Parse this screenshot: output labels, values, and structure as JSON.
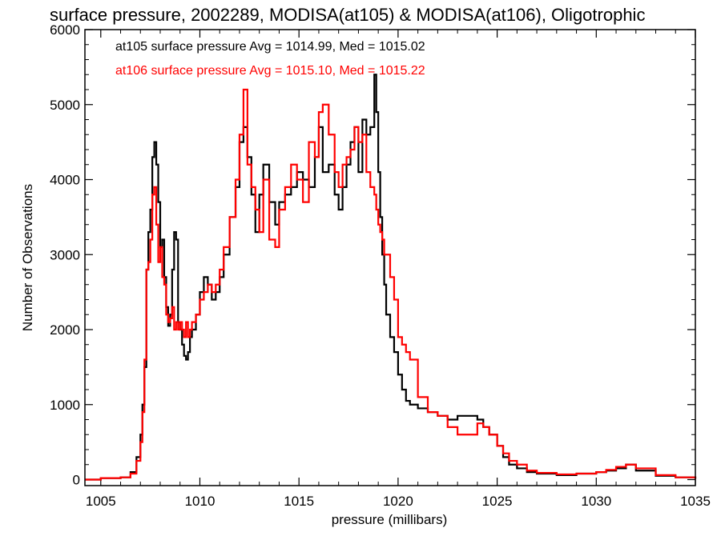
{
  "chart_data": {
    "type": "line",
    "title": "surface pressure, 2002289, MODISA(at105) & MODISA(at106), Oligotrophic",
    "xlabel": "pressure (millibars)",
    "ylabel": "Number of Observations",
    "xlim": [
      1004.2,
      1035
    ],
    "ylim": [
      -80,
      6000
    ],
    "x_ticks": [
      1005,
      1010,
      1015,
      1020,
      1025,
      1030,
      1035
    ],
    "y_ticks": [
      0,
      1000,
      2000,
      3000,
      4000,
      5000,
      6000
    ],
    "x_tick_labels": [
      "1005",
      "1010",
      "1015",
      "1020",
      "1025",
      "1030",
      "1035"
    ],
    "y_tick_labels": [
      "0",
      "1000",
      "2000",
      "3000",
      "4000",
      "5000",
      "6000"
    ],
    "grid": false,
    "legend_position": "top-left",
    "series": [
      {
        "name": "at105 surface pressure Avg = 1014.99, Med = 1015.02",
        "color": "#000000",
        "x": [
          1004.2,
          1005,
          1006,
          1006.5,
          1006.8,
          1007,
          1007.1,
          1007.2,
          1007.3,
          1007.4,
          1007.5,
          1007.6,
          1007.7,
          1007.8,
          1007.9,
          1008,
          1008.1,
          1008.2,
          1008.3,
          1008.4,
          1008.5,
          1008.6,
          1008.7,
          1008.8,
          1008.9,
          1009,
          1009.1,
          1009.2,
          1009.3,
          1009.4,
          1009.5,
          1009.6,
          1009.8,
          1010,
          1010.2,
          1010.4,
          1010.6,
          1010.8,
          1011,
          1011.2,
          1011.5,
          1011.8,
          1012,
          1012.2,
          1012.4,
          1012.6,
          1012.8,
          1013,
          1013.2,
          1013.5,
          1013.8,
          1014,
          1014.3,
          1014.6,
          1014.9,
          1015.2,
          1015.5,
          1015.8,
          1016,
          1016.2,
          1016.5,
          1016.8,
          1017,
          1017.2,
          1017.4,
          1017.6,
          1017.8,
          1018,
          1018.2,
          1018.4,
          1018.6,
          1018.8,
          1018.9,
          1019,
          1019.1,
          1019.2,
          1019.3,
          1019.4,
          1019.6,
          1019.8,
          1020,
          1020.2,
          1020.4,
          1020.6,
          1021,
          1021.5,
          1022,
          1022.5,
          1023,
          1023.5,
          1024,
          1024.3,
          1024.6,
          1025,
          1025.3,
          1025.6,
          1026,
          1026.5,
          1027,
          1028,
          1029,
          1030,
          1030.5,
          1031,
          1031.5,
          1032,
          1033,
          1034,
          1035
        ],
        "y": [
          0,
          20,
          30,
          100,
          300,
          600,
          1000,
          1500,
          2800,
          3300,
          3600,
          4300,
          4500,
          4200,
          3700,
          3100,
          3200,
          2700,
          2300,
          2050,
          2200,
          2800,
          3300,
          3200,
          2100,
          2000,
          1800,
          1650,
          1600,
          1700,
          1900,
          2000,
          2200,
          2500,
          2700,
          2600,
          2400,
          2500,
          2700,
          3000,
          3500,
          3900,
          4500,
          4700,
          4300,
          3800,
          3300,
          3800,
          4200,
          3700,
          3400,
          3700,
          3800,
          3900,
          4100,
          4000,
          3900,
          4300,
          4700,
          4100,
          4200,
          3800,
          3600,
          3900,
          4200,
          4500,
          4700,
          4100,
          4800,
          4600,
          4700,
          5400,
          4900,
          4100,
          3500,
          3000,
          2600,
          2200,
          1900,
          1700,
          1400,
          1200,
          1050,
          1000,
          950,
          900,
          850,
          800,
          850,
          850,
          800,
          700,
          600,
          450,
          300,
          200,
          150,
          100,
          80,
          60,
          80,
          100,
          120,
          150,
          200,
          120,
          50,
          30,
          10
        ]
      },
      {
        "name": "at106 surface pressure Avg = 1015.10, Med = 1015.22",
        "color": "#ff0000",
        "x": [
          1004.2,
          1005,
          1006,
          1006.5,
          1006.8,
          1007,
          1007.1,
          1007.2,
          1007.3,
          1007.4,
          1007.5,
          1007.6,
          1007.7,
          1007.8,
          1007.9,
          1008,
          1008.1,
          1008.2,
          1008.3,
          1008.4,
          1008.5,
          1008.6,
          1008.7,
          1008.8,
          1008.9,
          1009,
          1009.1,
          1009.2,
          1009.3,
          1009.4,
          1009.5,
          1009.6,
          1009.8,
          1010,
          1010.2,
          1010.4,
          1010.6,
          1010.8,
          1011,
          1011.2,
          1011.5,
          1011.8,
          1012,
          1012.2,
          1012.4,
          1012.6,
          1012.8,
          1013,
          1013.2,
          1013.5,
          1013.8,
          1014,
          1014.3,
          1014.6,
          1014.9,
          1015.2,
          1015.5,
          1015.8,
          1016,
          1016.2,
          1016.5,
          1016.8,
          1017,
          1017.2,
          1017.4,
          1017.6,
          1017.8,
          1018,
          1018.2,
          1018.4,
          1018.6,
          1018.8,
          1018.9,
          1019,
          1019.1,
          1019.2,
          1019.3,
          1019.4,
          1019.6,
          1019.8,
          1020,
          1020.2,
          1020.4,
          1020.6,
          1021,
          1021.5,
          1022,
          1022.5,
          1023,
          1023.5,
          1024,
          1024.3,
          1024.6,
          1025,
          1025.3,
          1025.6,
          1026,
          1026.5,
          1027,
          1028,
          1029,
          1030,
          1030.5,
          1031,
          1031.5,
          1032,
          1033,
          1034,
          1035
        ],
        "y": [
          0,
          20,
          30,
          80,
          250,
          500,
          900,
          1600,
          2800,
          2900,
          3200,
          3800,
          3900,
          3400,
          2900,
          3100,
          2700,
          2600,
          2200,
          2100,
          2150,
          2300,
          2000,
          2100,
          2000,
          2100,
          2000,
          1900,
          2100,
          1900,
          2000,
          2100,
          2200,
          2400,
          2500,
          2600,
          2500,
          2600,
          2800,
          3100,
          3500,
          4000,
          4600,
          5200,
          4200,
          3900,
          3600,
          3300,
          4000,
          3200,
          3100,
          3600,
          3900,
          4200,
          4000,
          3700,
          4500,
          4300,
          4900,
          5000,
          4600,
          4100,
          3900,
          4200,
          4300,
          4400,
          4700,
          4500,
          4600,
          4100,
          3900,
          3800,
          3600,
          3400,
          3300,
          3200,
          3000,
          3000,
          2700,
          2400,
          1900,
          1800,
          1700,
          1600,
          1100,
          900,
          850,
          700,
          600,
          600,
          750,
          700,
          600,
          450,
          350,
          250,
          200,
          120,
          90,
          70,
          80,
          100,
          130,
          170,
          200,
          150,
          60,
          30,
          10
        ]
      }
    ]
  }
}
